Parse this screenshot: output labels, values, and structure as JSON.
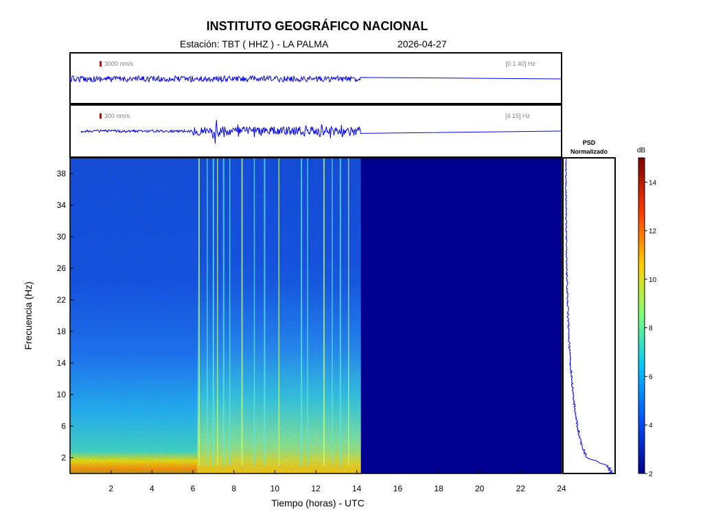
{
  "header": {
    "title": "INSTITUTO GEOGRÁFICO NACIONAL",
    "station": "Estación:  TBT ( HHZ ) - LA PALMA",
    "date": "2026-04-27"
  },
  "colors": {
    "trace": "#0000ee",
    "scale_marker": "#dd0000",
    "empty_spectrogram": "#00008f",
    "colormap": [
      "#00008f",
      "#0050ff",
      "#00c8ff",
      "#7cff7a",
      "#ffd000",
      "#ff3800",
      "#800000"
    ]
  },
  "chart_data": [
    {
      "type": "line",
      "panel": "waveform-broadband",
      "scale_label": "3000 nm/s",
      "band_label": "[0.1 40] Hz",
      "x": [
        0,
        14.2
      ],
      "data_until_hour": 14.2,
      "xlim": [
        0,
        24
      ],
      "amplitude_fraction": 0.06
    },
    {
      "type": "line",
      "panel": "waveform-filtered",
      "scale_label": "300 nm/s",
      "band_label": "[4 15] Hz",
      "data_until_hour": 14.2,
      "xlim": [
        0,
        24
      ],
      "noise_fraction": 0.04,
      "bursts": [
        {
          "hour": 7.1,
          "amp": 0.55
        },
        {
          "hour": 7.6,
          "amp": 0.35
        },
        {
          "hour": 8.2,
          "amp": 0.3
        },
        {
          "hour": 9.0,
          "amp": 0.25
        },
        {
          "hour": 10.5,
          "amp": 0.25
        },
        {
          "hour": 11.5,
          "amp": 0.3
        },
        {
          "hour": 12.3,
          "amp": 0.45
        },
        {
          "hour": 12.7,
          "amp": 0.35
        },
        {
          "hour": 13.3,
          "amp": 0.3
        }
      ]
    },
    {
      "type": "heatmap",
      "panel": "spectrogram",
      "xlabel": "Tiempo (horas) - UTC",
      "ylabel": "Frecuencia  (Hz)",
      "xlim": [
        0,
        24
      ],
      "ylim": [
        0,
        40
      ],
      "xticks": [
        2,
        4,
        6,
        8,
        10,
        12,
        14,
        16,
        18,
        20,
        22,
        24
      ],
      "yticks": [
        2,
        6,
        10,
        14,
        18,
        22,
        26,
        30,
        34,
        38
      ],
      "data_until_hour": 14.2,
      "transient_hours": [
        6.3,
        6.7,
        7.0,
        7.2,
        7.5,
        7.8,
        8.4,
        9.0,
        9.5,
        10.2,
        11.3,
        11.6,
        12.4,
        12.8,
        13.2,
        13.6
      ]
    },
    {
      "type": "line",
      "panel": "psd",
      "title": "PSD\nNormalizado",
      "title_line1": "PSD",
      "title_line2": "Normalizado",
      "freq_hz": [
        0,
        1,
        2,
        4,
        6,
        8,
        10,
        12,
        14,
        16,
        18,
        20,
        22,
        24,
        26,
        28,
        30,
        34,
        38,
        40
      ],
      "normalized_psd": [
        1.0,
        0.9,
        0.45,
        0.32,
        0.25,
        0.2,
        0.16,
        0.13,
        0.1,
        0.08,
        0.06,
        0.05,
        0.04,
        0.03,
        0.02,
        0.015,
        0.012,
        0.008,
        0.005,
        0.004
      ]
    },
    {
      "type": "colorbar",
      "panel": "colorbar",
      "unit": "dB",
      "range": [
        2,
        15
      ],
      "ticks": [
        2,
        4,
        6,
        8,
        10,
        12,
        14
      ]
    }
  ]
}
